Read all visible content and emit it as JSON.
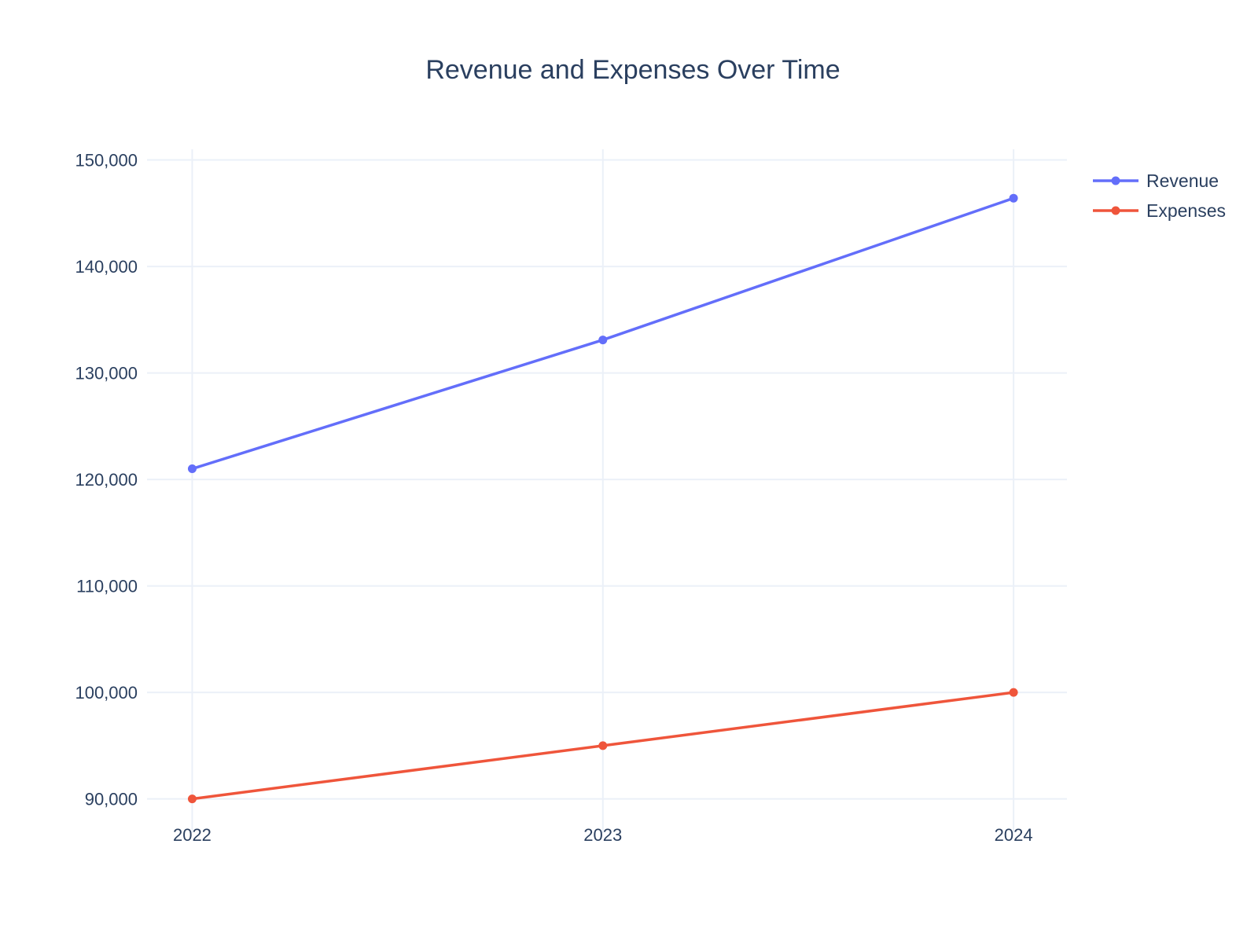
{
  "chart_data": {
    "type": "line",
    "title": "Revenue and Expenses Over Time",
    "xlabel": "",
    "ylabel": "",
    "categories": [
      "2022",
      "2023",
      "2024"
    ],
    "x": [
      2022,
      2023,
      2024
    ],
    "yticks": [
      90000,
      100000,
      110000,
      120000,
      130000,
      140000,
      150000
    ],
    "ytick_labels": [
      "90,000",
      "100,000",
      "110,000",
      "120,000",
      "130,000",
      "140,000",
      "150,000"
    ],
    "xlim": [
      2021.89,
      2024.13
    ],
    "ylim": [
      86800,
      151000
    ],
    "grid": true,
    "legend_position": "top-right",
    "series": [
      {
        "name": "Revenue",
        "color": "#636efa",
        "marker": "circle",
        "values": [
          121000,
          133100,
          146410
        ]
      },
      {
        "name": "Expenses",
        "color": "#ef553b",
        "marker": "circle",
        "values": [
          90000,
          95000,
          100000
        ]
      }
    ]
  }
}
